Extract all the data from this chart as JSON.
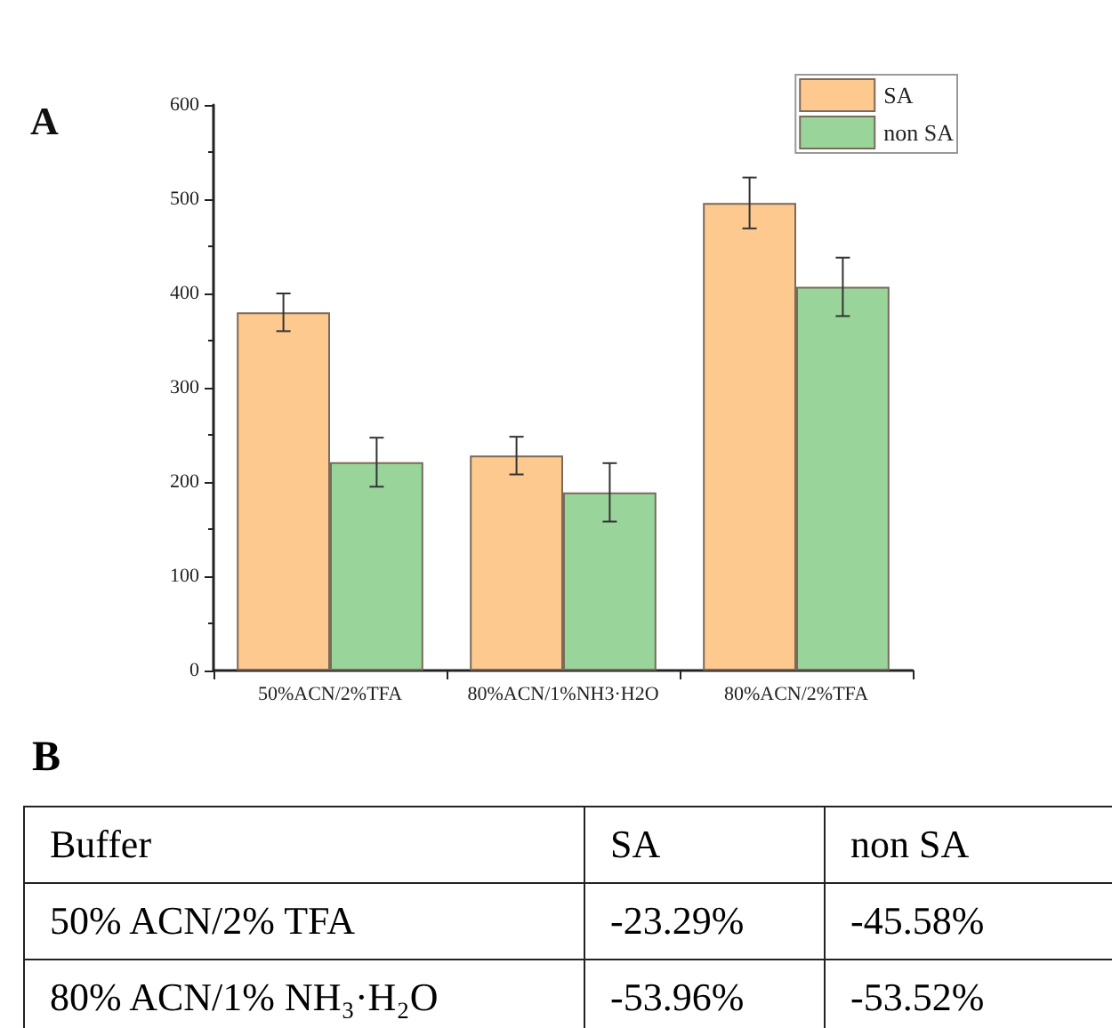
{
  "chart_data": [
    {
      "type": "bar",
      "title": "A",
      "categories": [
        "50%ACN/2%TFA",
        "80%ACN/1%NH3·H2O",
        "80%ACN/2%TFA"
      ],
      "series": [
        {
          "name": "SA",
          "color": "#fdc98e",
          "values": [
            380,
            228,
            496
          ],
          "errors": [
            20,
            20,
            27
          ]
        },
        {
          "name": "non SA",
          "color": "#99d59b",
          "values": [
            221,
            189,
            407
          ],
          "errors": [
            26,
            31,
            31
          ]
        }
      ],
      "ylim": [
        0,
        600
      ],
      "yticks": [
        0,
        100,
        200,
        300,
        400,
        500,
        600
      ],
      "grid": false,
      "legend": "top right"
    },
    {
      "type": "other",
      "title": "B",
      "xlabel": "Buffer",
      "categories": [
        "50% ACN/2% TFA",
        "80% ACN/1% NH₃·H₂O"
      ],
      "series": [
        {
          "name": "SA",
          "values": [
            -23.29,
            -53.96
          ],
          "value_labels": [
            "-23.29%",
            "-53.96%"
          ]
        },
        {
          "name": "non SA",
          "values": [
            -45.58,
            -53.52
          ],
          "value_labels": [
            "-45.58%",
            "-53.52%"
          ]
        }
      ]
    }
  ]
}
